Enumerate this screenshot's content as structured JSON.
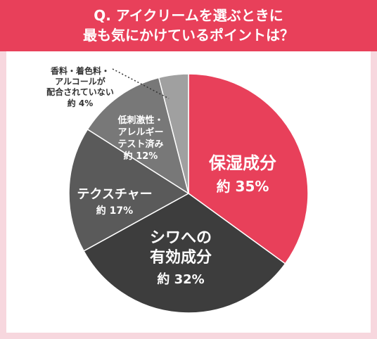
{
  "header": {
    "question_line1": "Q. アイクリームを選ぶときに",
    "question_line2": "最も気にかけているポイントは？"
  },
  "chart_data": {
    "type": "pie",
    "title": "Q. アイクリームを選ぶときに最も気にかけているポイントは？",
    "slices": [
      {
        "lines": [
          "保湿成分"
        ],
        "value_label": "約 35%",
        "value": 35,
        "color": "#e8405a"
      },
      {
        "lines": [
          "シワへの",
          "有効成分"
        ],
        "value_label": "約 32%",
        "value": 32,
        "color": "#3d3d3d"
      },
      {
        "lines": [
          "テクスチャー"
        ],
        "value_label": "約 17%",
        "value": 17,
        "color": "#5a5a5a"
      },
      {
        "lines": [
          "低刺激性・",
          "アレルギー",
          "テスト済み"
        ],
        "value_label": "約 12%",
        "value": 12,
        "color": "#787878"
      },
      {
        "lines": [
          "香料・着色料・",
          "アルコールが",
          "配合されていない"
        ],
        "value_label": "約 4%",
        "value": 4,
        "color": "#a0a0a0"
      }
    ]
  }
}
